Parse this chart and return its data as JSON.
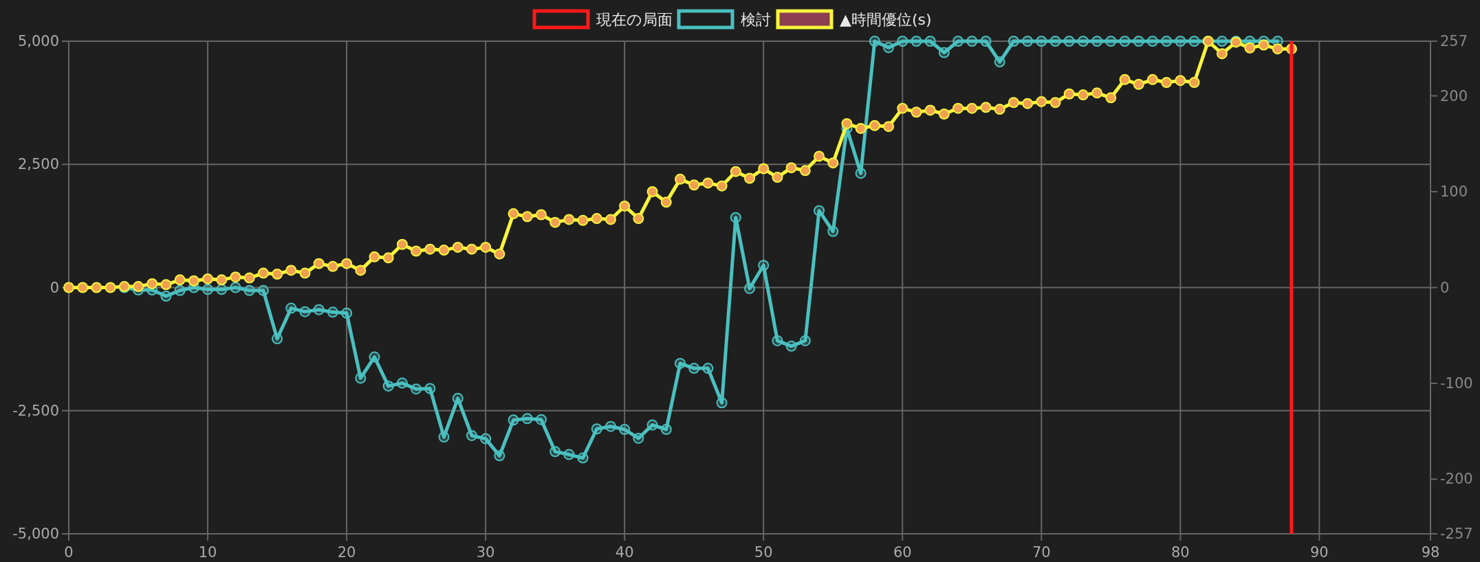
{
  "chart_data": {
    "type": "line",
    "xlim": [
      0,
      98
    ],
    "xticks": [
      0,
      10,
      20,
      30,
      40,
      50,
      60,
      70,
      80,
      90,
      98
    ],
    "ylim": [
      -5000,
      5000
    ],
    "yticks": [
      {
        "value": -5000,
        "label": "-5,000"
      },
      {
        "value": -2500,
        "label": "-2,500"
      },
      0,
      {
        "value": 2500,
        "label": "2,500"
      },
      {
        "value": 5000,
        "label": "5,000"
      }
    ],
    "y2lim": [
      -257,
      257
    ],
    "y2ticks": [
      -257,
      -200,
      -100,
      0,
      100,
      200,
      257
    ],
    "grid": true,
    "legend": "top",
    "marker": "circle",
    "ref_lines": [
      {
        "axis": "x",
        "value": 88,
        "label": "現在の局面",
        "color": "#ff1a1a"
      }
    ],
    "series": [
      {
        "name": "検討",
        "color": "#4bc0c0",
        "x": [
          4,
          5,
          6,
          7,
          8,
          9,
          10,
          11,
          12,
          13,
          14,
          15,
          16,
          17,
          18,
          19,
          20,
          21,
          22,
          23,
          24,
          25,
          26,
          27,
          28,
          29,
          30,
          31,
          32,
          33,
          34,
          35,
          36,
          37,
          38,
          39,
          40,
          41,
          42,
          43,
          44,
          45,
          46,
          47,
          48,
          49,
          50,
          51,
          52,
          53,
          54,
          55,
          56,
          57,
          58,
          59,
          60,
          61,
          62,
          63,
          64,
          65,
          66,
          67,
          68,
          69,
          70,
          71,
          72,
          73,
          74,
          75,
          76,
          77,
          78,
          79,
          80,
          81,
          82,
          83,
          84,
          85,
          86,
          87
        ],
        "values": [
          0,
          -50,
          -50,
          -175,
          -60,
          0,
          -40,
          -40,
          0,
          -60,
          -60,
          -1040,
          -420,
          -490,
          -450,
          -500,
          -520,
          -1840,
          -1410,
          -2000,
          -1940,
          -2060,
          -2050,
          -3035,
          -2250,
          -3005,
          -3070,
          -3415,
          -2690,
          -2660,
          -2680,
          -3330,
          -3390,
          -3460,
          -2870,
          -2820,
          -2880,
          -3060,
          -2790,
          -2880,
          -1540,
          -1640,
          -1640,
          -2340,
          1420,
          -20,
          450,
          -1080,
          -1190,
          -1080,
          1560,
          1140,
          3230,
          2320,
          5000,
          4870,
          5000,
          5000,
          5000,
          4770,
          5000,
          5000,
          5000,
          4580,
          5000,
          5000,
          5000,
          5000,
          5000,
          5000,
          5000,
          5000,
          5000,
          5000,
          5000,
          5000,
          5000,
          5000,
          5000,
          5000,
          5000,
          5000,
          5000,
          5000
        ]
      },
      {
        "name": "▲時間優位(s)",
        "color": "#f8f53c",
        "axis": "y2",
        "x": [
          0,
          1,
          2,
          3,
          4,
          5,
          6,
          7,
          8,
          9,
          10,
          11,
          12,
          13,
          14,
          15,
          16,
          17,
          18,
          19,
          20,
          21,
          22,
          23,
          24,
          25,
          26,
          27,
          28,
          29,
          30,
          31,
          32,
          33,
          34,
          35,
          36,
          37,
          38,
          39,
          40,
          41,
          42,
          43,
          44,
          45,
          46,
          47,
          48,
          49,
          50,
          51,
          52,
          53,
          54,
          55,
          56,
          57,
          58,
          59,
          60,
          61,
          62,
          63,
          64,
          65,
          66,
          67,
          68,
          69,
          70,
          71,
          72,
          73,
          74,
          75,
          76,
          77,
          78,
          79,
          80,
          81,
          82,
          83,
          84,
          85,
          86,
          87,
          88
        ],
        "values": [
          0,
          0,
          0,
          0,
          1,
          1,
          4,
          3,
          8,
          7,
          9,
          8,
          11,
          10,
          15,
          14,
          18,
          15,
          25,
          22,
          25,
          18,
          32,
          31,
          45,
          38,
          40,
          39,
          42,
          40,
          42,
          35,
          77,
          74,
          76,
          68,
          71,
          70,
          72,
          71,
          85,
          72,
          100,
          89,
          113,
          107,
          109,
          106,
          121,
          114,
          124,
          115,
          125,
          122,
          137,
          130,
          171,
          166,
          169,
          168,
          187,
          183,
          185,
          181,
          187,
          187,
          188,
          186,
          193,
          192,
          194,
          193,
          202,
          201,
          203,
          198,
          217,
          212,
          217,
          214,
          216,
          214,
          257,
          244,
          256,
          250,
          253,
          249,
          249
        ]
      }
    ]
  }
}
